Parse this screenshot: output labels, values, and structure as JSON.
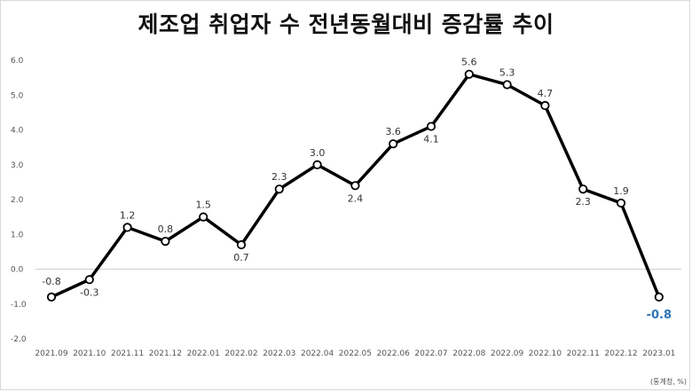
{
  "chart_data": {
    "type": "line",
    "title": "제조업 취업자 수 전년동월대비 증감률 추이",
    "source": "(통계청, %)",
    "categories": [
      "2021.09",
      "2021.10",
      "2021.11",
      "2021.12",
      "2022.01",
      "2022.02",
      "2022.03",
      "2022.04",
      "2022.05",
      "2022.06",
      "2022.07",
      "2022.08",
      "2022.09",
      "2022.10",
      "2022.11",
      "2022.12",
      "2023.01"
    ],
    "values": [
      -0.8,
      -0.3,
      1.2,
      0.8,
      1.5,
      0.7,
      2.3,
      3.0,
      2.4,
      3.6,
      4.1,
      5.6,
      5.3,
      4.7,
      2.3,
      1.9,
      -0.8
    ],
    "data_labels": [
      "-0.8",
      "-0.3",
      "1.2",
      "0.8",
      "1.5",
      "0.7",
      "2.3",
      "3.0",
      "2.4",
      "3.6",
      "4.1",
      "5.6",
      "5.3",
      "4.7",
      "2.3",
      "1.9",
      "-0.8"
    ],
    "label_positions": [
      "above",
      "below",
      "above",
      "above",
      "above",
      "below",
      "above",
      "above",
      "below",
      "above",
      "below",
      "above",
      "above",
      "above",
      "below",
      "above",
      "below"
    ],
    "highlight_last": true,
    "ylim": [
      -2.0,
      6.0
    ],
    "yticks": [
      "6.0",
      "5.0",
      "4.0",
      "3.0",
      "2.0",
      "1.0",
      "0.0",
      "-1.0",
      "-2.0"
    ],
    "ytick_values": [
      6,
      5,
      4,
      3,
      2,
      1,
      0,
      -1,
      -2
    ],
    "grid": false,
    "zero_line": true,
    "colors": {
      "line": "#000000",
      "marker_fill": "#ffffff",
      "highlight": "#2e75b6",
      "zero_line": "#d0d0d0"
    }
  }
}
